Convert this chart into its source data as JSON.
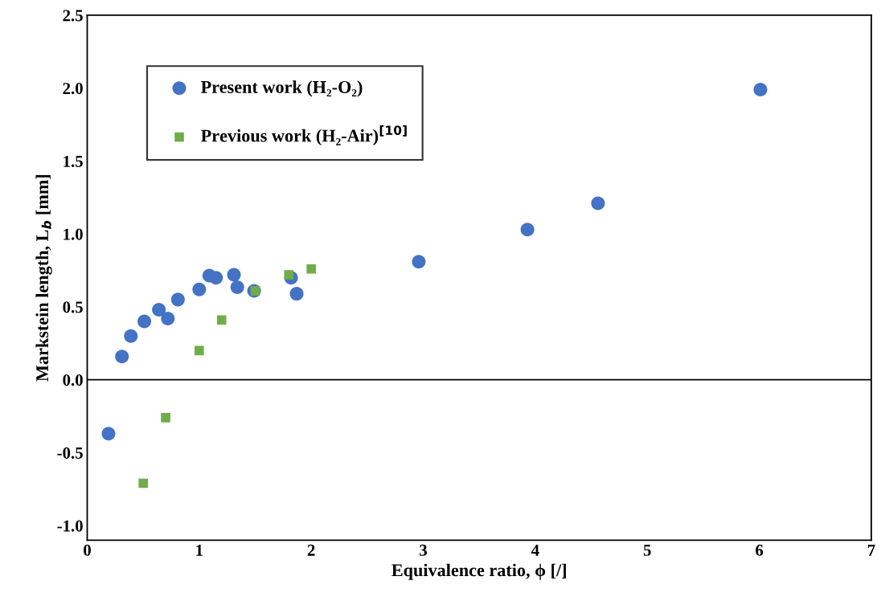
{
  "chart_data": {
    "type": "scatter",
    "xlabel": "Equivalence ratio, ϕ [/]",
    "ylabel": "Markstein length, L$_{b}$ [mm]",
    "xlim": [
      0,
      7
    ],
    "xticks": [
      0,
      1,
      2,
      3,
      4,
      5,
      6,
      7
    ],
    "ylim": [
      -1.1,
      2.5
    ],
    "yticks": [
      {
        "value": -1.0,
        "label": "-1.0"
      },
      {
        "value": -0.5,
        "label": "-0.5"
      },
      {
        "value": 0,
        "label": "0.0"
      },
      {
        "value": 0.5,
        "label": "0.5"
      },
      {
        "value": 1.0,
        "label": "1.0"
      },
      {
        "value": 1.5,
        "label": "1.5"
      },
      {
        "value": 2.0,
        "label": "2.0"
      },
      {
        "value": 2.5,
        "label": "2.5"
      }
    ],
    "grid": false,
    "legend": "top left",
    "ref_lines": [
      {
        "axis": "y",
        "value": 0,
        "color": "#000000"
      }
    ],
    "series": [
      {
        "name": "Present work (H₂-O₂)",
        "color": "#4472c4",
        "marker": "circle",
        "x": [
          0.19,
          0.31,
          0.39,
          0.51,
          0.64,
          0.72,
          0.81,
          1.0,
          1.09,
          1.15,
          1.31,
          1.34,
          1.49,
          1.82,
          1.87,
          2.96,
          3.93,
          4.56,
          6.01
        ],
        "values": [
          -0.37,
          0.16,
          0.3,
          0.4,
          0.48,
          0.42,
          0.55,
          0.62,
          0.715,
          0.7,
          0.72,
          0.635,
          0.61,
          0.7,
          0.59,
          0.81,
          1.03,
          1.21,
          1.99
        ]
      },
      {
        "name": "Previous work (H₂-Air)$^{[10]}$",
        "color": "#70ad47",
        "marker": "square",
        "x": [
          0.5,
          0.7,
          1.0,
          1.2,
          1.5,
          1.8,
          2.0
        ],
        "values": [
          -0.71,
          -0.26,
          0.2,
          0.41,
          0.61,
          0.72,
          0.76
        ]
      }
    ]
  }
}
